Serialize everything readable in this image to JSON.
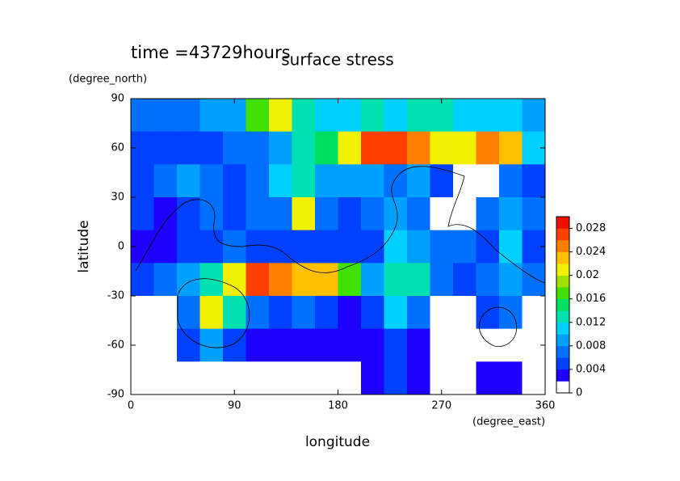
{
  "chart_data": {
    "type": "contour",
    "title": "surface stress",
    "subtitle": "time =43729hours",
    "x_label": "longitude",
    "x_units": "(degree_east)",
    "y_label": "latitude",
    "y_units": "(degree_north)",
    "xlim": [
      0,
      360
    ],
    "xticks": [
      0,
      90,
      180,
      270,
      360
    ],
    "ylim": [
      -90,
      90
    ],
    "yticks": [
      -90,
      -60,
      -30,
      0,
      30,
      60,
      90
    ],
    "x": [
      10,
      30,
      50,
      70,
      90,
      110,
      130,
      150,
      170,
      190,
      210,
      230,
      250,
      270,
      290,
      310,
      330,
      350
    ],
    "y": [
      80,
      60,
      40,
      20,
      0,
      -20,
      -40,
      -60,
      -80
    ],
    "z": [
      [
        0.006,
        0.006,
        0.007,
        0.008,
        0.008,
        0.016,
        0.02,
        0.012,
        0.01,
        0.01,
        0.012,
        0.01,
        0.012,
        0.012,
        0.01,
        0.01,
        0.01,
        0.008
      ],
      [
        0.004,
        0.004,
        0.005,
        0.005,
        0.006,
        0.006,
        0.008,
        0.012,
        0.014,
        0.02,
        0.026,
        0.026,
        0.024,
        0.02,
        0.02,
        0.024,
        0.022,
        0.01
      ],
      [
        0.004,
        0.006,
        0.008,
        0.006,
        0.005,
        0.006,
        0.01,
        0.012,
        0.008,
        0.008,
        0.008,
        0.006,
        0.008,
        0.004,
        0,
        0,
        0.006,
        0.004
      ],
      [
        0.004,
        0.002,
        0.004,
        0.006,
        0.004,
        0.006,
        0.006,
        0.02,
        0.006,
        0.004,
        0.006,
        0.008,
        0.006,
        0,
        0,
        0.006,
        0.008,
        0.006
      ],
      [
        0.002,
        0.002,
        0.004,
        0.004,
        0.006,
        0.004,
        0.004,
        0.004,
        0.004,
        0.004,
        0.004,
        0.01,
        0.008,
        0.006,
        0.006,
        0.004,
        0.01,
        0.004
      ],
      [
        0.004,
        0.006,
        0.008,
        0.012,
        0.02,
        0.026,
        0.024,
        0.022,
        0.022,
        0.016,
        0.008,
        0.012,
        0.012,
        0.006,
        0.004,
        0.006,
        0.008,
        0.006
      ],
      [
        0,
        0,
        0.006,
        0.02,
        0.012,
        0.006,
        0.004,
        0.006,
        0.004,
        0.002,
        0.004,
        0.01,
        0.006,
        0,
        0,
        0.004,
        0.006,
        0
      ],
      [
        0,
        0,
        0.004,
        0.008,
        0.004,
        0.002,
        0.002,
        0.002,
        0.002,
        0.002,
        0.002,
        0.004,
        0.002,
        0,
        0,
        0,
        0,
        0
      ],
      [
        0,
        0,
        0,
        0,
        0,
        0,
        0,
        0,
        0,
        0,
        0.002,
        0.004,
        0.002,
        0,
        0,
        0.002,
        0.002,
        0
      ]
    ],
    "clim": [
      0,
      0.03
    ],
    "cticks": [
      0,
      0.004,
      0.008,
      0.012,
      0.016,
      0.02,
      0.024,
      0.028
    ],
    "colors": [
      "#ffffff",
      "#1e00ff",
      "#0040ff",
      "#0070ff",
      "#00a0ff",
      "#00d0ff",
      "#00e0b0",
      "#00e060",
      "#40e000",
      "#a0e000",
      "#f0f000",
      "#ffc000",
      "#ff8000",
      "#ff4000",
      "#f01000"
    ]
  }
}
